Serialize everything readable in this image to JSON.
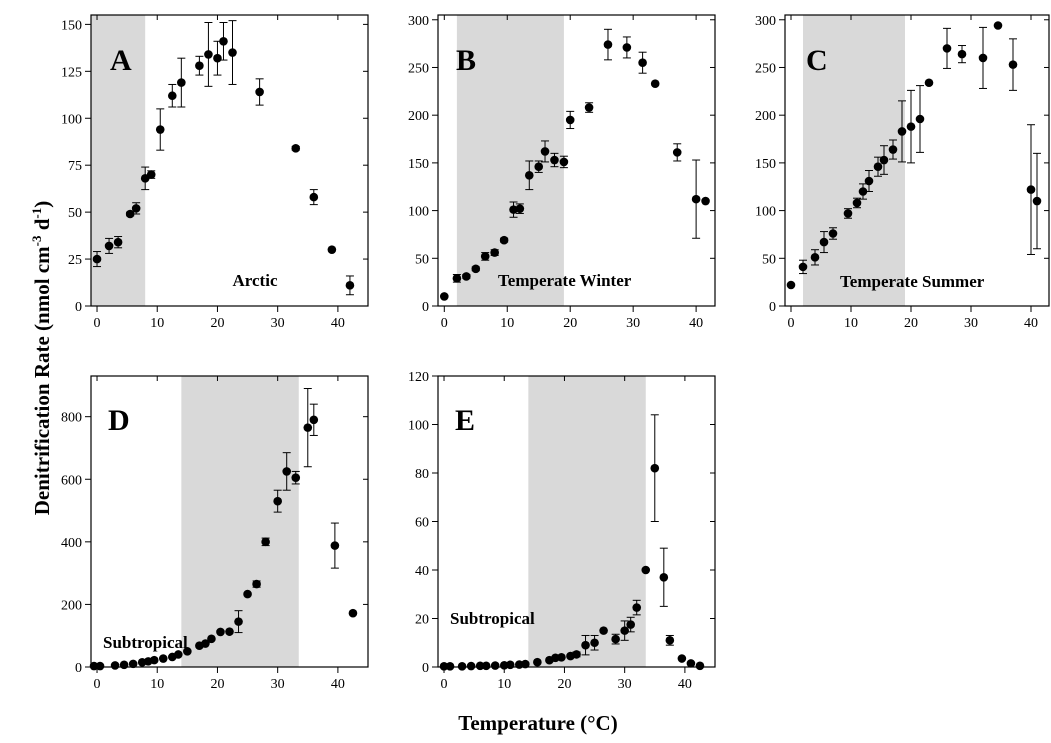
{
  "figure": {
    "xlabel": "Temperature (°C)",
    "ylabel_main": "Denitrification Rate (nmol cm",
    "ylabel_sup1": "-3",
    "ylabel_mid": " d",
    "ylabel_sup2": "-1",
    "ylabel_end": ")",
    "colors": {
      "shade": "#d9d9d9",
      "points": "#000000",
      "axes": "#000000"
    }
  },
  "chart_data": [
    {
      "type": "scatter",
      "panel": "A",
      "label": "Arctic",
      "xlim": [
        -1,
        45
      ],
      "ylim": [
        0,
        155
      ],
      "xticks": [
        0,
        10,
        20,
        30,
        40
      ],
      "yticks": [
        0,
        25,
        50,
        75,
        100,
        125,
        150
      ],
      "shaded_range": [
        -1,
        8
      ],
      "points": [
        {
          "x": 0,
          "y": 25,
          "err": 4
        },
        {
          "x": 2,
          "y": 32,
          "err": 4
        },
        {
          "x": 3.5,
          "y": 34,
          "err": 3
        },
        {
          "x": 5.5,
          "y": 49,
          "err": 1
        },
        {
          "x": 6.5,
          "y": 52,
          "err": 3
        },
        {
          "x": 8,
          "y": 68,
          "err": 6
        },
        {
          "x": 9,
          "y": 70,
          "err": 2
        },
        {
          "x": 10.5,
          "y": 94,
          "err": 11
        },
        {
          "x": 12.5,
          "y": 112,
          "err": 6
        },
        {
          "x": 14,
          "y": 119,
          "err": 13
        },
        {
          "x": 17,
          "y": 128,
          "err": 5
        },
        {
          "x": 18.5,
          "y": 134,
          "err": 17
        },
        {
          "x": 20,
          "y": 132,
          "err": 9
        },
        {
          "x": 21,
          "y": 141,
          "err": 10
        },
        {
          "x": 22.5,
          "y": 135,
          "err": 17
        },
        {
          "x": 27,
          "y": 114,
          "err": 7
        },
        {
          "x": 33,
          "y": 84,
          "err": 1
        },
        {
          "x": 36,
          "y": 58,
          "err": 4
        },
        {
          "x": 39,
          "y": 30,
          "err": 0
        },
        {
          "x": 42,
          "y": 11,
          "err": 5
        }
      ]
    },
    {
      "type": "scatter",
      "panel": "B",
      "label": "Temperate Winter",
      "xlim": [
        -1,
        43
      ],
      "ylim": [
        0,
        305
      ],
      "xticks": [
        0,
        10,
        20,
        30,
        40
      ],
      "yticks": [
        0,
        50,
        100,
        150,
        200,
        250,
        300
      ],
      "shaded_range": [
        2,
        19
      ],
      "points": [
        {
          "x": 0,
          "y": 10,
          "err": 0
        },
        {
          "x": 2,
          "y": 29,
          "err": 4
        },
        {
          "x": 3.5,
          "y": 31,
          "err": 2
        },
        {
          "x": 5,
          "y": 39,
          "err": 2
        },
        {
          "x": 6.5,
          "y": 52,
          "err": 4
        },
        {
          "x": 8,
          "y": 56,
          "err": 3
        },
        {
          "x": 9.5,
          "y": 69,
          "err": 2
        },
        {
          "x": 11,
          "y": 101,
          "err": 8
        },
        {
          "x": 12,
          "y": 102,
          "err": 5
        },
        {
          "x": 13.5,
          "y": 137,
          "err": 15
        },
        {
          "x": 15,
          "y": 146,
          "err": 6
        },
        {
          "x": 16,
          "y": 162,
          "err": 11
        },
        {
          "x": 17.5,
          "y": 153,
          "err": 7
        },
        {
          "x": 19,
          "y": 151,
          "err": 6
        },
        {
          "x": 20,
          "y": 195,
          "err": 9
        },
        {
          "x": 23,
          "y": 208,
          "err": 5
        },
        {
          "x": 26,
          "y": 274,
          "err": 16
        },
        {
          "x": 29,
          "y": 271,
          "err": 11
        },
        {
          "x": 31.5,
          "y": 255,
          "err": 11
        },
        {
          "x": 33.5,
          "y": 233,
          "err": 0
        },
        {
          "x": 37,
          "y": 161,
          "err": 9
        },
        {
          "x": 40,
          "y": 112,
          "err": 41
        },
        {
          "x": 41.5,
          "y": 110,
          "err": 0
        }
      ]
    },
    {
      "type": "scatter",
      "panel": "C",
      "label": "Temperate Summer",
      "xlim": [
        -1,
        43
      ],
      "ylim": [
        0,
        305
      ],
      "xticks": [
        0,
        10,
        20,
        30,
        40
      ],
      "yticks": [
        0,
        50,
        100,
        150,
        200,
        250,
        300
      ],
      "shaded_range": [
        2,
        19
      ],
      "points": [
        {
          "x": 0,
          "y": 22,
          "err": 0
        },
        {
          "x": 2,
          "y": 41,
          "err": 7
        },
        {
          "x": 4,
          "y": 51,
          "err": 8
        },
        {
          "x": 5.5,
          "y": 67,
          "err": 11
        },
        {
          "x": 7,
          "y": 76,
          "err": 6
        },
        {
          "x": 9.5,
          "y": 97,
          "err": 5
        },
        {
          "x": 11,
          "y": 108,
          "err": 5
        },
        {
          "x": 12,
          "y": 120,
          "err": 8
        },
        {
          "x": 13,
          "y": 131,
          "err": 11
        },
        {
          "x": 14.5,
          "y": 146,
          "err": 10
        },
        {
          "x": 15.5,
          "y": 153,
          "err": 15
        },
        {
          "x": 17,
          "y": 164,
          "err": 10
        },
        {
          "x": 18.5,
          "y": 183,
          "err": 32
        },
        {
          "x": 20,
          "y": 188,
          "err": 38
        },
        {
          "x": 21.5,
          "y": 196,
          "err": 35
        },
        {
          "x": 23,
          "y": 234,
          "err": 0
        },
        {
          "x": 26,
          "y": 270,
          "err": 21
        },
        {
          "x": 28.5,
          "y": 264,
          "err": 9
        },
        {
          "x": 32,
          "y": 260,
          "err": 32
        },
        {
          "x": 34.5,
          "y": 294,
          "err": 0
        },
        {
          "x": 37,
          "y": 253,
          "err": 27
        },
        {
          "x": 40,
          "y": 122,
          "err": 68
        },
        {
          "x": 41,
          "y": 110,
          "err": 50
        }
      ]
    },
    {
      "type": "scatter",
      "panel": "D",
      "label": "Subtropical",
      "xlim": [
        -1,
        45
      ],
      "ylim": [
        0,
        930
      ],
      "xticks": [
        0,
        10,
        20,
        30,
        40
      ],
      "yticks": [
        0,
        200,
        400,
        600,
        800
      ],
      "shaded_range": [
        14,
        33.5
      ],
      "points": [
        {
          "x": -0.5,
          "y": 3,
          "err": 0
        },
        {
          "x": 0.5,
          "y": 3,
          "err": 0
        },
        {
          "x": 3,
          "y": 5,
          "err": 0
        },
        {
          "x": 4.5,
          "y": 7,
          "err": 0
        },
        {
          "x": 6,
          "y": 10,
          "err": 0
        },
        {
          "x": 7.5,
          "y": 15,
          "err": 0
        },
        {
          "x": 8.5,
          "y": 18,
          "err": 0
        },
        {
          "x": 9.5,
          "y": 22,
          "err": 0
        },
        {
          "x": 11,
          "y": 27,
          "err": 0
        },
        {
          "x": 12.5,
          "y": 32,
          "err": 0
        },
        {
          "x": 13.5,
          "y": 40,
          "err": 0
        },
        {
          "x": 15,
          "y": 50,
          "err": 0
        },
        {
          "x": 17,
          "y": 68,
          "err": 0
        },
        {
          "x": 18,
          "y": 75,
          "err": 0
        },
        {
          "x": 19,
          "y": 90,
          "err": 0
        },
        {
          "x": 20.5,
          "y": 112,
          "err": 0
        },
        {
          "x": 22,
          "y": 113,
          "err": 0
        },
        {
          "x": 23.5,
          "y": 145,
          "err": 35
        },
        {
          "x": 25,
          "y": 233,
          "err": 0
        },
        {
          "x": 26.5,
          "y": 265,
          "err": 10
        },
        {
          "x": 28,
          "y": 400,
          "err": 12
        },
        {
          "x": 30,
          "y": 530,
          "err": 35
        },
        {
          "x": 31.5,
          "y": 625,
          "err": 60
        },
        {
          "x": 33,
          "y": 605,
          "err": 20
        },
        {
          "x": 35,
          "y": 765,
          "err": 125
        },
        {
          "x": 36,
          "y": 790,
          "err": 50
        },
        {
          "x": 39.5,
          "y": 388,
          "err": 72
        },
        {
          "x": 42.5,
          "y": 172,
          "err": 0
        }
      ]
    },
    {
      "type": "scatter",
      "panel": "E",
      "label": "Subtropical",
      "xlim": [
        -1,
        45
      ],
      "ylim": [
        0,
        120
      ],
      "xticks": [
        0,
        10,
        20,
        30,
        40
      ],
      "yticks": [
        0,
        20,
        40,
        60,
        80,
        100,
        120
      ],
      "shaded_range": [
        14,
        33.5
      ],
      "points": [
        {
          "x": 0,
          "y": 0.3,
          "err": 0
        },
        {
          "x": 1,
          "y": 0.3,
          "err": 0
        },
        {
          "x": 3,
          "y": 0.3,
          "err": 0
        },
        {
          "x": 4.5,
          "y": 0.4,
          "err": 0
        },
        {
          "x": 6,
          "y": 0.5,
          "err": 0
        },
        {
          "x": 7,
          "y": 0.5,
          "err": 0
        },
        {
          "x": 8.5,
          "y": 0.6,
          "err": 0
        },
        {
          "x": 10,
          "y": 0.7,
          "err": 0
        },
        {
          "x": 11,
          "y": 0.9,
          "err": 0
        },
        {
          "x": 12.5,
          "y": 1,
          "err": 0
        },
        {
          "x": 13.5,
          "y": 1.2,
          "err": 0
        },
        {
          "x": 15.5,
          "y": 2,
          "err": 0
        },
        {
          "x": 17.5,
          "y": 2.8,
          "err": 0
        },
        {
          "x": 18.5,
          "y": 3.8,
          "err": 0
        },
        {
          "x": 19.5,
          "y": 4,
          "err": 0
        },
        {
          "x": 21,
          "y": 4.5,
          "err": 0
        },
        {
          "x": 22,
          "y": 5.2,
          "err": 1
        },
        {
          "x": 23.5,
          "y": 9,
          "err": 4
        },
        {
          "x": 25,
          "y": 10,
          "err": 3
        },
        {
          "x": 26.5,
          "y": 15,
          "err": 0
        },
        {
          "x": 28.5,
          "y": 11.5,
          "err": 2
        },
        {
          "x": 30,
          "y": 15,
          "err": 4
        },
        {
          "x": 31,
          "y": 17.5,
          "err": 3
        },
        {
          "x": 32,
          "y": 24.5,
          "err": 3
        },
        {
          "x": 33.5,
          "y": 40,
          "err": 0
        },
        {
          "x": 35,
          "y": 82,
          "err": 22
        },
        {
          "x": 36.5,
          "y": 37,
          "err": 12
        },
        {
          "x": 37.5,
          "y": 11,
          "err": 2
        },
        {
          "x": 39.5,
          "y": 3.5,
          "err": 0
        },
        {
          "x": 41,
          "y": 1.5,
          "err": 0
        },
        {
          "x": 42.5,
          "y": 0.5,
          "err": 0
        }
      ]
    }
  ]
}
